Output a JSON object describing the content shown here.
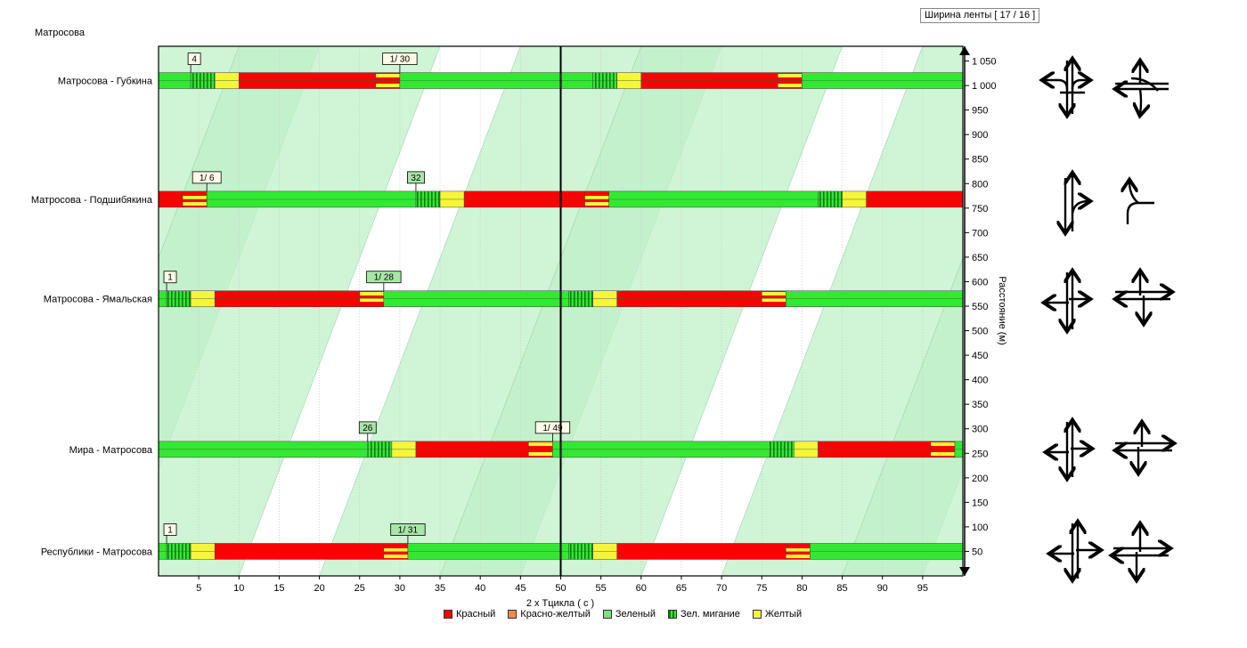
{
  "header": {
    "band_width": "Ширина ленты [ 17 / 16 ]",
    "street": "Матросова"
  },
  "colors": {
    "red": "#ff0000",
    "red_yellow": "#f08a4b",
    "green": "#33e833",
    "green_blink": "#1fa81f",
    "yellow": "#f5f53a",
    "band": "#bff0c8",
    "band_overlap": "#a3e6b3"
  },
  "legend": [
    {
      "label": "Красный",
      "color": "#ff0000"
    },
    {
      "label": "Красно-желтый",
      "color": "#f08a4b"
    },
    {
      "label": "Зеленый",
      "color": "#7ee07e"
    },
    {
      "label": "Зел. мигание",
      "color": "#1fa81f"
    },
    {
      "label": "Желтый",
      "color": "#f5f53a"
    }
  ],
  "chart_data": {
    "type": "time-space diagram",
    "xlabel": "2 x Тцикла ( с )",
    "ylabel": "Расстояние (м)",
    "xlim": [
      0,
      100
    ],
    "ylim": [
      0,
      1080
    ],
    "x_ticks": [
      5,
      10,
      15,
      20,
      25,
      30,
      35,
      40,
      45,
      50,
      55,
      60,
      65,
      70,
      75,
      80,
      85,
      90,
      95
    ],
    "y_ticks": [
      50,
      100,
      150,
      200,
      250,
      300,
      350,
      400,
      450,
      500,
      550,
      600,
      650,
      700,
      750,
      800,
      850,
      900,
      950,
      1000,
      1050
    ],
    "y_tick_labels": [
      "50",
      "100",
      "150",
      "200",
      "250",
      "300",
      "350",
      "400",
      "450",
      "500",
      "550",
      "600",
      "650",
      "700",
      "750",
      "800",
      "850",
      "900",
      "950",
      "1 000",
      "1 050"
    ],
    "cycle_line_x": 50,
    "intersections": [
      {
        "name": "Матросова - Губкина",
        "distance": 1010,
        "markers": [
          {
            "x": 4,
            "label": "4",
            "style": "plain"
          },
          {
            "x": 30,
            "label": "1/ 30",
            "style": "plain"
          }
        ],
        "segments": [
          {
            "from": 0,
            "to": 4,
            "phase": "green"
          },
          {
            "from": 4,
            "to": 7,
            "phase": "green_blink"
          },
          {
            "from": 7,
            "to": 10,
            "phase": "yellow"
          },
          {
            "from": 10,
            "to": 27,
            "phase": "red"
          },
          {
            "from": 27,
            "to": 30,
            "phase": "red_yellow"
          },
          {
            "from": 30,
            "to": 54,
            "phase": "green"
          },
          {
            "from": 54,
            "to": 57,
            "phase": "green_blink"
          },
          {
            "from": 57,
            "to": 60,
            "phase": "yellow"
          },
          {
            "from": 60,
            "to": 77,
            "phase": "red"
          },
          {
            "from": 77,
            "to": 80,
            "phase": "red_yellow"
          },
          {
            "from": 80,
            "to": 100,
            "phase": "green"
          }
        ]
      },
      {
        "name": "Матросова - Подшибякина",
        "distance": 768,
        "markers": [
          {
            "x": 6,
            "label": "1/ 6",
            "style": "plain"
          },
          {
            "x": 32,
            "label": "32",
            "style": "green"
          }
        ],
        "segments": [
          {
            "from": 0,
            "to": 3,
            "phase": "red"
          },
          {
            "from": 3,
            "to": 6,
            "phase": "red_yellow"
          },
          {
            "from": 6,
            "to": 32,
            "phase": "green"
          },
          {
            "from": 32,
            "to": 35,
            "phase": "green_blink"
          },
          {
            "from": 35,
            "to": 38,
            "phase": "yellow"
          },
          {
            "from": 38,
            "to": 53,
            "phase": "red"
          },
          {
            "from": 53,
            "to": 56,
            "phase": "red_yellow"
          },
          {
            "from": 56,
            "to": 82,
            "phase": "green"
          },
          {
            "from": 82,
            "to": 85,
            "phase": "green_blink"
          },
          {
            "from": 85,
            "to": 88,
            "phase": "yellow"
          },
          {
            "from": 88,
            "to": 100,
            "phase": "red"
          }
        ]
      },
      {
        "name": "Матросова - Ямальская",
        "distance": 565,
        "markers": [
          {
            "x": 1,
            "label": "1",
            "style": "plain"
          },
          {
            "x": 28,
            "label": "1/ 28",
            "style": "green"
          }
        ],
        "segments": [
          {
            "from": 0,
            "to": 1,
            "phase": "green"
          },
          {
            "from": 1,
            "to": 4,
            "phase": "green_blink"
          },
          {
            "from": 4,
            "to": 7,
            "phase": "yellow"
          },
          {
            "from": 7,
            "to": 25,
            "phase": "red"
          },
          {
            "from": 25,
            "to": 28,
            "phase": "red_yellow"
          },
          {
            "from": 28,
            "to": 51,
            "phase": "green"
          },
          {
            "from": 51,
            "to": 54,
            "phase": "green_blink"
          },
          {
            "from": 54,
            "to": 57,
            "phase": "yellow"
          },
          {
            "from": 57,
            "to": 75,
            "phase": "red"
          },
          {
            "from": 75,
            "to": 78,
            "phase": "red_yellow"
          },
          {
            "from": 78,
            "to": 100,
            "phase": "green"
          }
        ]
      },
      {
        "name": "Мира - Матросова",
        "distance": 258,
        "markers": [
          {
            "x": 26,
            "label": "26",
            "style": "green"
          },
          {
            "x": 49,
            "label": "1/ 49",
            "style": "plain"
          }
        ],
        "segments": [
          {
            "from": 0,
            "to": 26,
            "phase": "green"
          },
          {
            "from": 26,
            "to": 29,
            "phase": "green_blink"
          },
          {
            "from": 29,
            "to": 32,
            "phase": "yellow"
          },
          {
            "from": 32,
            "to": 46,
            "phase": "red"
          },
          {
            "from": 46,
            "to": 49,
            "phase": "red_yellow"
          },
          {
            "from": 49,
            "to": 76,
            "phase": "green"
          },
          {
            "from": 76,
            "to": 79,
            "phase": "green_blink"
          },
          {
            "from": 79,
            "to": 82,
            "phase": "yellow"
          },
          {
            "from": 82,
            "to": 96,
            "phase": "red"
          },
          {
            "from": 96,
            "to": 99,
            "phase": "red_yellow"
          },
          {
            "from": 99,
            "to": 100,
            "phase": "green"
          }
        ]
      },
      {
        "name": "Республики - Матросова",
        "distance": 50,
        "markers": [
          {
            "x": 1,
            "label": "1",
            "style": "plain"
          },
          {
            "x": 31,
            "label": "1/ 31",
            "style": "green"
          }
        ],
        "segments": [
          {
            "from": 0,
            "to": 1,
            "phase": "green"
          },
          {
            "from": 1,
            "to": 4,
            "phase": "green_blink"
          },
          {
            "from": 4,
            "to": 7,
            "phase": "yellow"
          },
          {
            "from": 7,
            "to": 28,
            "phase": "red"
          },
          {
            "from": 28,
            "to": 31,
            "phase": "red_yellow"
          },
          {
            "from": 31,
            "to": 51,
            "phase": "green"
          },
          {
            "from": 51,
            "to": 54,
            "phase": "green_blink"
          },
          {
            "from": 54,
            "to": 57,
            "phase": "yellow"
          },
          {
            "from": 57,
            "to": 78,
            "phase": "red"
          },
          {
            "from": 78,
            "to": 81,
            "phase": "red_yellow"
          },
          {
            "from": 81,
            "to": 100,
            "phase": "green"
          }
        ]
      }
    ],
    "green_bands": [
      {
        "direction": "up",
        "polygon": [
          [
            -30,
            0
          ],
          [
            -5,
            0
          ],
          [
            20,
            1080
          ],
          [
            -5,
            1080
          ]
        ]
      },
      {
        "direction": "up",
        "polygon": [
          [
            20,
            0
          ],
          [
            45,
            0
          ],
          [
            70,
            1080
          ],
          [
            45,
            1080
          ]
        ]
      },
      {
        "direction": "up",
        "polygon": [
          [
            70,
            0
          ],
          [
            95,
            0
          ],
          [
            120,
            1080
          ],
          [
            95,
            1080
          ]
        ]
      },
      {
        "direction": "down",
        "polygon": [
          [
            10,
            1080
          ],
          [
            35,
            1080
          ],
          [
            10,
            0
          ],
          [
            -15,
            0
          ]
        ]
      },
      {
        "direction": "down",
        "polygon": [
          [
            60,
            1080
          ],
          [
            85,
            1080
          ],
          [
            60,
            0
          ],
          [
            35,
            0
          ]
        ]
      },
      {
        "direction": "down",
        "polygon": [
          [
            110,
            1080
          ],
          [
            135,
            1080
          ],
          [
            110,
            0
          ],
          [
            85,
            0
          ]
        ]
      }
    ]
  }
}
